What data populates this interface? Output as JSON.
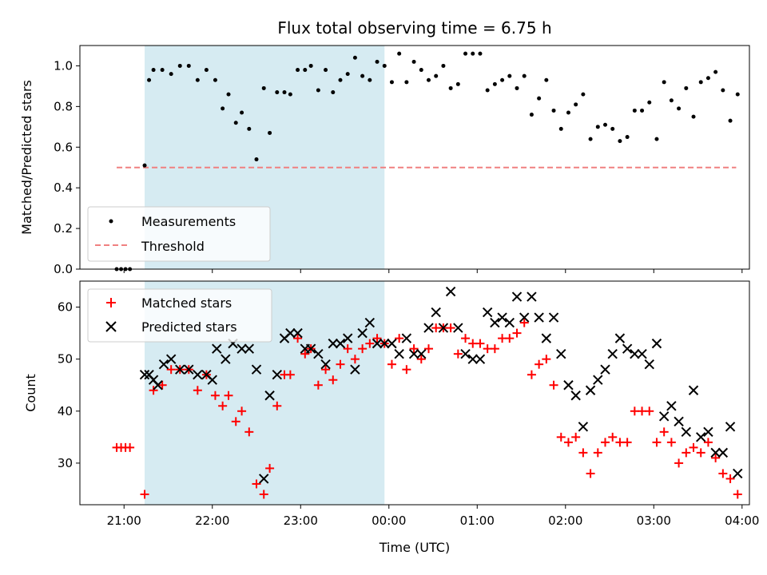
{
  "chart_data": [
    {
      "type": "scatter",
      "title": "Flux total observing time = 6.75 h",
      "xlabel": "",
      "ylabel": "Matched/Predicted stars",
      "ylim": [
        0,
        1.1
      ],
      "yticks": [
        "0.0",
        "0.2",
        "0.4",
        "0.6",
        "0.8",
        "1.0"
      ],
      "ytick_values": [
        0,
        0.2,
        0.4,
        0.6,
        0.8,
        1.0
      ],
      "shaded_span": {
        "start": "21:14",
        "end": "23:57",
        "color": "#add8e6"
      },
      "legend": {
        "placement": "lower left",
        "entries": [
          "Measurements",
          "Threshold"
        ]
      },
      "threshold": {
        "name": "Threshold",
        "y": 0.5,
        "x_start": "20:55",
        "x_end": "03:56",
        "color": "#f08080",
        "style": "dashed"
      },
      "series": [
        {
          "name": "Measurements",
          "color": "#000000",
          "points": [
            [
              "20:55",
              0.0
            ],
            [
              "20:58",
              0.0
            ],
            [
              "21:01",
              0.0
            ],
            [
              "21:04",
              0.0
            ],
            [
              "21:14",
              0.51
            ],
            [
              "21:17",
              0.93
            ],
            [
              "21:20",
              0.98
            ],
            [
              "21:26",
              0.98
            ],
            [
              "21:32",
              0.96
            ],
            [
              "21:38",
              1.0
            ],
            [
              "21:44",
              1.0
            ],
            [
              "21:50",
              0.93
            ],
            [
              "21:56",
              0.98
            ],
            [
              "22:02",
              0.93
            ],
            [
              "22:07",
              0.79
            ],
            [
              "22:11",
              0.86
            ],
            [
              "22:16",
              0.72
            ],
            [
              "22:20",
              0.77
            ],
            [
              "22:25",
              0.69
            ],
            [
              "22:30",
              0.54
            ],
            [
              "22:35",
              0.89
            ],
            [
              "22:39",
              0.67
            ],
            [
              "22:44",
              0.87
            ],
            [
              "22:49",
              0.87
            ],
            [
              "22:53",
              0.86
            ],
            [
              "22:58",
              0.98
            ],
            [
              "23:03",
              0.98
            ],
            [
              "23:07",
              1.0
            ],
            [
              "23:12",
              0.88
            ],
            [
              "23:17",
              0.98
            ],
            [
              "23:22",
              0.87
            ],
            [
              "23:27",
              0.93
            ],
            [
              "23:32",
              0.96
            ],
            [
              "23:37",
              1.04
            ],
            [
              "23:42",
              0.95
            ],
            [
              "23:47",
              0.93
            ],
            [
              "23:52",
              1.02
            ],
            [
              "23:57",
              1.0
            ],
            [
              "00:02",
              0.92
            ],
            [
              "00:07",
              1.06
            ],
            [
              "00:12",
              0.92
            ],
            [
              "00:17",
              1.02
            ],
            [
              "00:22",
              0.98
            ],
            [
              "00:27",
              0.93
            ],
            [
              "00:32",
              0.95
            ],
            [
              "00:37",
              1.0
            ],
            [
              "00:42",
              0.89
            ],
            [
              "00:47",
              0.91
            ],
            [
              "00:52",
              1.06
            ],
            [
              "00:57",
              1.06
            ],
            [
              "01:02",
              1.06
            ],
            [
              "01:07",
              0.88
            ],
            [
              "01:12",
              0.91
            ],
            [
              "01:17",
              0.93
            ],
            [
              "01:22",
              0.95
            ],
            [
              "01:27",
              0.89
            ],
            [
              "01:32",
              0.95
            ],
            [
              "01:37",
              0.76
            ],
            [
              "01:42",
              0.84
            ],
            [
              "01:47",
              0.93
            ],
            [
              "01:52",
              0.78
            ],
            [
              "01:57",
              0.69
            ],
            [
              "02:02",
              0.77
            ],
            [
              "02:07",
              0.81
            ],
            [
              "02:12",
              0.86
            ],
            [
              "02:17",
              0.64
            ],
            [
              "02:22",
              0.7
            ],
            [
              "02:27",
              0.71
            ],
            [
              "02:32",
              0.69
            ],
            [
              "02:37",
              0.63
            ],
            [
              "02:42",
              0.65
            ],
            [
              "02:47",
              0.78
            ],
            [
              "02:52",
              0.78
            ],
            [
              "02:57",
              0.82
            ],
            [
              "03:02",
              0.64
            ],
            [
              "03:07",
              0.92
            ],
            [
              "03:12",
              0.83
            ],
            [
              "03:17",
              0.79
            ],
            [
              "03:22",
              0.89
            ],
            [
              "03:27",
              0.75
            ],
            [
              "03:32",
              0.92
            ],
            [
              "03:37",
              0.94
            ],
            [
              "03:42",
              0.97
            ],
            [
              "03:47",
              0.88
            ],
            [
              "03:52",
              0.73
            ],
            [
              "03:57",
              0.86
            ]
          ]
        }
      ]
    },
    {
      "type": "scatter",
      "title": "",
      "xlabel": "Time (UTC)",
      "ylabel": "Count",
      "ylim": [
        22,
        65
      ],
      "yticks": [
        "30",
        "40",
        "50",
        "60"
      ],
      "ytick_values": [
        30,
        40,
        50,
        60
      ],
      "xticks": [
        "21:00",
        "22:00",
        "23:00",
        "00:00",
        "01:00",
        "02:00",
        "03:00",
        "04:00"
      ],
      "shaded_span": {
        "start": "21:14",
        "end": "23:57",
        "color": "#add8e6"
      },
      "legend": {
        "placement": "upper left",
        "entries": [
          "Matched stars",
          "Predicted stars"
        ]
      },
      "series": [
        {
          "name": "Matched stars",
          "marker": "plus",
          "color": "#ff0000",
          "points": [
            [
              "20:55",
              33
            ],
            [
              "20:58",
              33
            ],
            [
              "21:01",
              33
            ],
            [
              "21:04",
              33
            ],
            [
              "21:14",
              24
            ],
            [
              "21:20",
              44
            ],
            [
              "21:26",
              45
            ],
            [
              "21:32",
              48
            ],
            [
              "21:38",
              48
            ],
            [
              "21:44",
              48
            ],
            [
              "21:50",
              44
            ],
            [
              "21:56",
              47
            ],
            [
              "22:02",
              43
            ],
            [
              "22:07",
              41
            ],
            [
              "22:11",
              43
            ],
            [
              "22:16",
              38
            ],
            [
              "22:20",
              40
            ],
            [
              "22:25",
              36
            ],
            [
              "22:30",
              26
            ],
            [
              "22:35",
              24
            ],
            [
              "22:39",
              29
            ],
            [
              "22:44",
              41
            ],
            [
              "22:49",
              47
            ],
            [
              "22:53",
              47
            ],
            [
              "22:58",
              54
            ],
            [
              "23:03",
              51
            ],
            [
              "23:07",
              52
            ],
            [
              "23:12",
              45
            ],
            [
              "23:17",
              48
            ],
            [
              "23:22",
              46
            ],
            [
              "23:27",
              49
            ],
            [
              "23:32",
              52
            ],
            [
              "23:37",
              50
            ],
            [
              "23:42",
              52
            ],
            [
              "23:47",
              53
            ],
            [
              "23:52",
              54
            ],
            [
              "23:57",
              53
            ],
            [
              "00:02",
              49
            ],
            [
              "00:07",
              54
            ],
            [
              "00:12",
              48
            ],
            [
              "00:17",
              52
            ],
            [
              "00:22",
              50
            ],
            [
              "00:27",
              52
            ],
            [
              "00:32",
              56
            ],
            [
              "00:37",
              56
            ],
            [
              "00:42",
              56
            ],
            [
              "00:47",
              51
            ],
            [
              "00:52",
              54
            ],
            [
              "00:57",
              53
            ],
            [
              "01:02",
              53
            ],
            [
              "01:07",
              52
            ],
            [
              "01:12",
              52
            ],
            [
              "01:17",
              54
            ],
            [
              "01:22",
              54
            ],
            [
              "01:27",
              55
            ],
            [
              "01:32",
              57
            ],
            [
              "01:37",
              47
            ],
            [
              "01:42",
              49
            ],
            [
              "01:47",
              50
            ],
            [
              "01:52",
              45
            ],
            [
              "01:57",
              35
            ],
            [
              "02:02",
              34
            ],
            [
              "02:07",
              35
            ],
            [
              "02:12",
              32
            ],
            [
              "02:17",
              28
            ],
            [
              "02:22",
              32
            ],
            [
              "02:27",
              34
            ],
            [
              "02:32",
              35
            ],
            [
              "02:37",
              34
            ],
            [
              "02:42",
              34
            ],
            [
              "02:47",
              40
            ],
            [
              "02:52",
              40
            ],
            [
              "02:57",
              40
            ],
            [
              "03:02",
              34
            ],
            [
              "03:07",
              36
            ],
            [
              "03:12",
              34
            ],
            [
              "03:17",
              30
            ],
            [
              "03:22",
              32
            ],
            [
              "03:27",
              33
            ],
            [
              "03:32",
              32
            ],
            [
              "03:37",
              34
            ],
            [
              "03:42",
              31
            ],
            [
              "03:47",
              28
            ],
            [
              "03:52",
              27
            ],
            [
              "03:57",
              24
            ]
          ]
        },
        {
          "name": "Predicted stars",
          "marker": "x",
          "color": "#000000",
          "points": [
            [
              "21:14",
              47
            ],
            [
              "21:17",
              47
            ],
            [
              "21:20",
              46
            ],
            [
              "21:23",
              45
            ],
            [
              "21:27",
              49
            ],
            [
              "21:32",
              50
            ],
            [
              "21:38",
              48
            ],
            [
              "21:44",
              48
            ],
            [
              "21:50",
              47
            ],
            [
              "21:56",
              47
            ],
            [
              "22:00",
              46
            ],
            [
              "22:03",
              52
            ],
            [
              "22:09",
              50
            ],
            [
              "22:14",
              53
            ],
            [
              "22:20",
              52
            ],
            [
              "22:25",
              52
            ],
            [
              "22:30",
              48
            ],
            [
              "22:35",
              27
            ],
            [
              "22:39",
              43
            ],
            [
              "22:44",
              47
            ],
            [
              "22:49",
              54
            ],
            [
              "22:53",
              55
            ],
            [
              "22:58",
              55
            ],
            [
              "23:03",
              52
            ],
            [
              "23:07",
              52
            ],
            [
              "23:12",
              51
            ],
            [
              "23:17",
              49
            ],
            [
              "23:22",
              53
            ],
            [
              "23:27",
              53
            ],
            [
              "23:32",
              54
            ],
            [
              "23:37",
              48
            ],
            [
              "23:42",
              55
            ],
            [
              "23:47",
              57
            ],
            [
              "23:52",
              53
            ],
            [
              "23:57",
              53
            ],
            [
              "00:02",
              53
            ],
            [
              "00:07",
              51
            ],
            [
              "00:12",
              54
            ],
            [
              "00:17",
              51
            ],
            [
              "00:22",
              51
            ],
            [
              "00:27",
              56
            ],
            [
              "00:32",
              59
            ],
            [
              "00:37",
              56
            ],
            [
              "00:42",
              63
            ],
            [
              "00:47",
              56
            ],
            [
              "00:52",
              51
            ],
            [
              "00:57",
              50
            ],
            [
              "01:02",
              50
            ],
            [
              "01:07",
              59
            ],
            [
              "01:12",
              57
            ],
            [
              "01:17",
              58
            ],
            [
              "01:22",
              57
            ],
            [
              "01:27",
              62
            ],
            [
              "01:32",
              58
            ],
            [
              "01:37",
              62
            ],
            [
              "01:42",
              58
            ],
            [
              "01:47",
              54
            ],
            [
              "01:52",
              58
            ],
            [
              "01:57",
              51
            ],
            [
              "02:02",
              45
            ],
            [
              "02:07",
              43
            ],
            [
              "02:12",
              37
            ],
            [
              "02:17",
              44
            ],
            [
              "02:22",
              46
            ],
            [
              "02:27",
              48
            ],
            [
              "02:32",
              51
            ],
            [
              "02:37",
              54
            ],
            [
              "02:42",
              52
            ],
            [
              "02:47",
              51
            ],
            [
              "02:52",
              51
            ],
            [
              "02:57",
              49
            ],
            [
              "03:02",
              53
            ],
            [
              "03:07",
              39
            ],
            [
              "03:12",
              41
            ],
            [
              "03:17",
              38
            ],
            [
              "03:22",
              36
            ],
            [
              "03:27",
              44
            ],
            [
              "03:32",
              35
            ],
            [
              "03:37",
              36
            ],
            [
              "03:42",
              32
            ],
            [
              "03:47",
              32
            ],
            [
              "03:52",
              37
            ],
            [
              "03:57",
              28
            ]
          ]
        }
      ]
    }
  ]
}
